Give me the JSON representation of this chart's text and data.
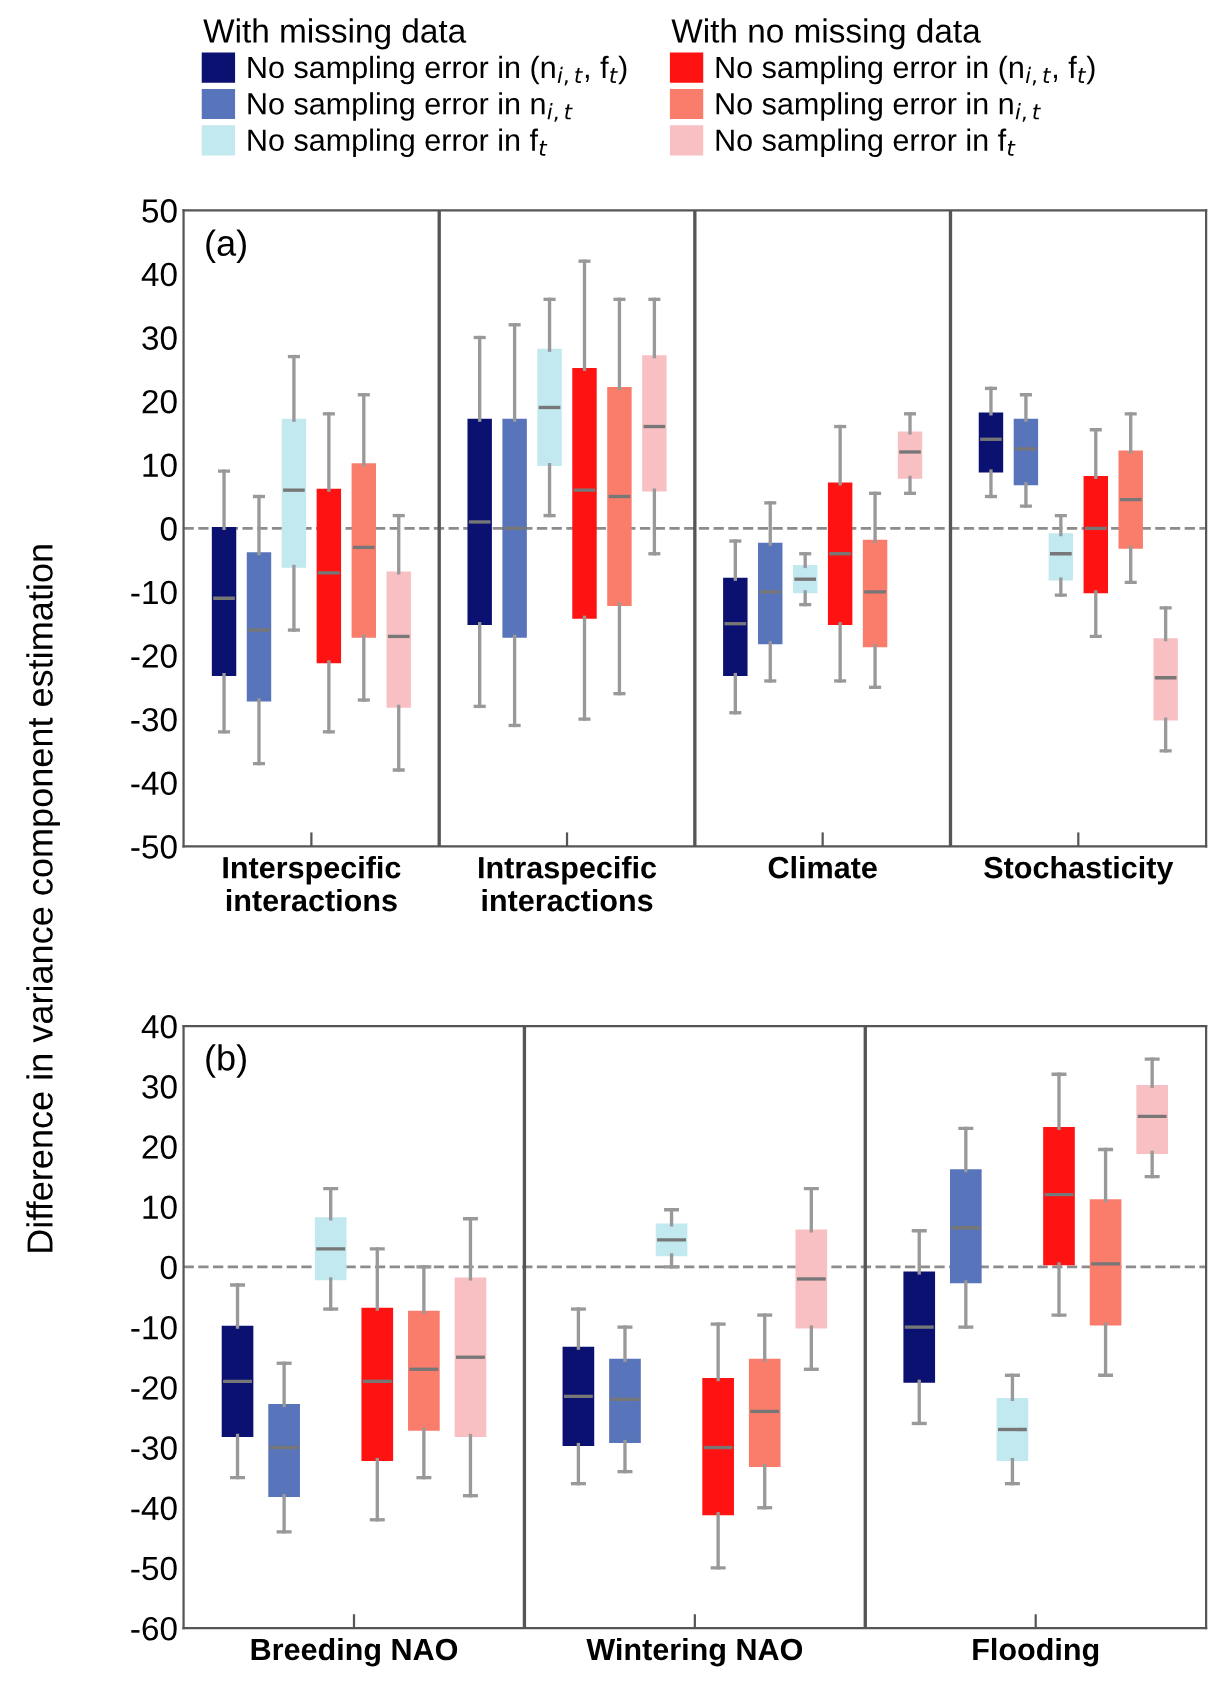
{
  "chart_data": [
    {
      "type": "box",
      "title": "(a)",
      "ylabel": "Difference in variance component estimation",
      "annotations": [
        "With missing data",
        "With no missing data"
      ],
      "legend": "top",
      "categories": [
        "Interspecific\ninteractions",
        "Intraspecific\ninteractions",
        "Climate",
        "Stochasticity"
      ],
      "ylim": [
        -50,
        50
      ],
      "yticks": [
        -50,
        -40,
        -30,
        -20,
        -10,
        0,
        10,
        20,
        30,
        40,
        50
      ],
      "ref_lines": [
        {
          "axis": "y",
          "value": 0,
          "color": "#8c8c8c",
          "line_style": "dashed"
        }
      ],
      "series": [
        {
          "name": "No sampling error in (n$_{i,t}$, f$_{t}$)",
          "color": "#0b1170",
          "boxes": [
            {
              "low": -32,
              "q1": -23,
              "median": -11,
              "q3": 0,
              "high": 9
            },
            {
              "low": -28,
              "q1": -15,
              "median": 1,
              "q3": 17,
              "high": 30
            },
            {
              "low": -29,
              "q1": -23,
              "median": -15,
              "q3": -8,
              "high": -2
            },
            {
              "low": 5,
              "q1": 9,
              "median": 14,
              "q3": 18,
              "high": 22
            }
          ]
        },
        {
          "name": "No sampling error in n$_{i,t}$",
          "color": "#5874ba",
          "boxes": [
            {
              "low": -37,
              "q1": -27,
              "median": -16,
              "q3": -4,
              "high": 5
            },
            {
              "low": -31,
              "q1": -17,
              "median": 0,
              "q3": 17,
              "high": 32
            },
            {
              "low": -24,
              "q1": -18,
              "median": -10,
              "q3": -2.5,
              "high": 4
            },
            {
              "low": 3.5,
              "q1": 7,
              "median": 12.5,
              "q3": 17,
              "high": 21
            }
          ]
        },
        {
          "name": "No sampling error in f$_{t}$",
          "color": "#c2e8f0",
          "boxes": [
            {
              "low": -16,
              "q1": -6,
              "median": 6,
              "q3": 17,
              "high": 27
            },
            {
              "low": 2,
              "q1": 10,
              "median": 19,
              "q3": 28,
              "high": 36
            },
            {
              "low": -12,
              "q1": -10,
              "median": -8,
              "q3": -6,
              "high": -4
            },
            {
              "low": -10.5,
              "q1": -8,
              "median": -4,
              "q3": -1,
              "high": 2
            }
          ]
        },
        {
          "name": "No sampling error in (n$_{i,t}$, f$_{t}$)",
          "color": "#ff1212",
          "boxes": [
            {
              "low": -32,
              "q1": -21,
              "median": -7,
              "q3": 6,
              "high": 18
            },
            {
              "low": -30,
              "q1": -14,
              "median": 6,
              "q3": 25,
              "high": 42
            },
            {
              "low": -24,
              "q1": -15,
              "median": -4,
              "q3": 7,
              "high": 16
            },
            {
              "low": -17,
              "q1": -10,
              "median": 0,
              "q3": 8,
              "high": 15.5
            }
          ]
        },
        {
          "name": "No sampling error in n$_{i,t}$",
          "color": "#fa7d6c",
          "boxes": [
            {
              "low": -27,
              "q1": -17,
              "median": -3,
              "q3": 10,
              "high": 21
            },
            {
              "low": -26,
              "q1": -12,
              "median": 5,
              "q3": 22,
              "high": 36
            },
            {
              "low": -25,
              "q1": -18.5,
              "median": -10,
              "q3": -2,
              "high": 5.5
            },
            {
              "low": -8.5,
              "q1": -3,
              "median": 4.5,
              "q3": 12,
              "high": 18
            }
          ]
        },
        {
          "name": "No sampling error in f$_{t}$",
          "color": "#f9c0c3",
          "boxes": [
            {
              "low": -38,
              "q1": -28,
              "median": -17,
              "q3": -7,
              "high": 2
            },
            {
              "low": -4,
              "q1": 6,
              "median": 16,
              "q3": 27,
              "high": 36
            },
            {
              "low": 5.5,
              "q1": 8,
              "median": 12,
              "q3": 15,
              "high": 18
            },
            {
              "low": -35,
              "q1": -30,
              "median": -23.5,
              "q3": -17.5,
              "high": -12.5
            }
          ]
        }
      ]
    },
    {
      "type": "box",
      "title": "(b)",
      "categories": [
        "Breeding NAO",
        "Wintering NAO",
        "Flooding"
      ],
      "ylim": [
        -60,
        40
      ],
      "yticks": [
        -60,
        -50,
        -40,
        -30,
        -20,
        -10,
        0,
        10,
        20,
        30,
        40
      ],
      "ref_lines": [
        {
          "axis": "y",
          "value": 0,
          "color": "#8c8c8c",
          "line_style": "dashed"
        }
      ],
      "series": [
        {
          "color": "#0b1170",
          "boxes": [
            {
              "low": -35,
              "q1": -28,
              "median": -19,
              "q3": -10,
              "high": -3
            },
            {
              "low": -36,
              "q1": -29.5,
              "median": -21.5,
              "q3": -13.5,
              "high": -7
            },
            {
              "low": -26,
              "q1": -19,
              "median": -10,
              "q3": -1,
              "high": 6
            }
          ]
        },
        {
          "color": "#5874ba",
          "boxes": [
            {
              "low": -44,
              "q1": -38,
              "median": -30,
              "q3": -23,
              "high": -16
            },
            {
              "low": -34,
              "q1": -29,
              "median": -22,
              "q3": -15.5,
              "high": -10
            },
            {
              "low": -10,
              "q1": -2.5,
              "median": 6.5,
              "q3": 16,
              "high": 23
            }
          ]
        },
        {
          "color": "#c2e8f0",
          "boxes": [
            {
              "low": -7,
              "q1": -2,
              "median": 3,
              "q3": 8,
              "high": 13
            },
            {
              "low": 0,
              "q1": 2,
              "median": 4.5,
              "q3": 7,
              "high": 9.5
            },
            {
              "low": -36,
              "q1": -32,
              "median": -27,
              "q3": -22,
              "high": -18
            }
          ]
        },
        {
          "color": "#ff1212",
          "boxes": [
            {
              "low": -42,
              "q1": -32,
              "median": -19,
              "q3": -7,
              "high": 3
            },
            {
              "low": -50,
              "q1": -41,
              "median": -30,
              "q3": -18.7,
              "high": -9.5
            },
            {
              "low": -8,
              "q1": 0.5,
              "median": 12,
              "q3": 23,
              "high": 32
            }
          ]
        },
        {
          "color": "#fa7d6c",
          "boxes": [
            {
              "low": -35,
              "q1": -27,
              "median": -17,
              "q3": -7.5,
              "high": 0
            },
            {
              "low": -40,
              "q1": -33,
              "median": -24,
              "q3": -15.5,
              "high": -8
            },
            {
              "low": -18,
              "q1": -9.5,
              "median": 0.5,
              "q3": 11,
              "high": 19.5
            }
          ]
        },
        {
          "color": "#f9c0c3",
          "boxes": [
            {
              "low": -38,
              "q1": -28,
              "median": -15,
              "q3": -2,
              "high": 8
            },
            {
              "low": -17,
              "q1": -10,
              "median": -2,
              "q3": 6,
              "high": 13
            },
            {
              "low": 15,
              "q1": 19,
              "median": 25,
              "q3": 30,
              "high": 34.5
            }
          ]
        }
      ]
    }
  ]
}
